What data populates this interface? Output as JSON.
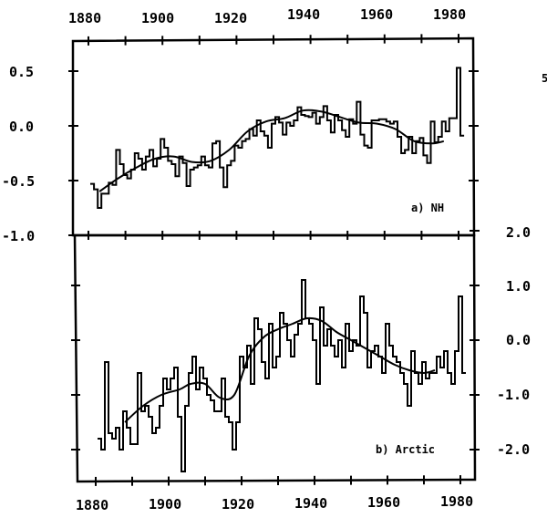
{
  "chart_data": [
    {
      "type": "line",
      "panel": "a",
      "title": "a) NH",
      "xlabel": "",
      "ylabel": "",
      "x_ticks": [
        "1880",
        "1900",
        "1920",
        "1940",
        "1960",
        "1980"
      ],
      "y_ticks": [
        "0.5",
        "0.0",
        "-0.5",
        "-1.0"
      ],
      "xlim": [
        1880,
        1983
      ],
      "ylim": [
        -1.0,
        0.6
      ],
      "grid": false,
      "series": [
        {
          "name": "annual (step)",
          "style": "step",
          "x": [
            1881,
            1882,
            1883,
            1884,
            1885,
            1886,
            1887,
            1888,
            1889,
            1890,
            1891,
            1892,
            1893,
            1894,
            1895,
            1896,
            1897,
            1898,
            1899,
            1900,
            1901,
            1902,
            1903,
            1904,
            1905,
            1906,
            1907,
            1908,
            1909,
            1910,
            1911,
            1912,
            1913,
            1914,
            1915,
            1916,
            1917,
            1918,
            1919,
            1920,
            1921,
            1922,
            1923,
            1924,
            1925,
            1926,
            1927,
            1928,
            1929,
            1930,
            1931,
            1932,
            1933,
            1934,
            1935,
            1936,
            1937,
            1938,
            1939,
            1940,
            1941,
            1942,
            1943,
            1944,
            1945,
            1946,
            1947,
            1948,
            1949,
            1950,
            1951,
            1952,
            1953,
            1954,
            1955,
            1956,
            1957,
            1958,
            1959,
            1960,
            1961,
            1962,
            1963,
            1964,
            1965,
            1966,
            1967,
            1968,
            1969,
            1970,
            1971,
            1972,
            1973,
            1974,
            1975,
            1976,
            1977,
            1978,
            1979,
            1980,
            1981
          ],
          "values": [
            -0.53,
            -0.58,
            -0.75,
            -0.62,
            -0.62,
            -0.52,
            -0.54,
            -0.22,
            -0.35,
            -0.45,
            -0.48,
            -0.4,
            -0.25,
            -0.3,
            -0.4,
            -0.28,
            -0.22,
            -0.37,
            -0.3,
            -0.12,
            -0.2,
            -0.32,
            -0.35,
            -0.46,
            -0.28,
            -0.34,
            -0.55,
            -0.4,
            -0.38,
            -0.36,
            -0.28,
            -0.36,
            -0.38,
            -0.16,
            -0.14,
            -0.38,
            -0.56,
            -0.36,
            -0.32,
            -0.18,
            -0.2,
            -0.14,
            -0.12,
            -0.03,
            -0.09,
            0.05,
            -0.05,
            -0.09,
            -0.2,
            0.02,
            0.08,
            0.03,
            -0.08,
            0.03,
            0.0,
            0.05,
            0.17,
            0.1,
            0.09,
            0.08,
            0.12,
            0.02,
            0.08,
            0.18,
            0.05,
            -0.06,
            0.1,
            0.05,
            -0.04,
            -0.1,
            0.06,
            0.02,
            0.22,
            -0.08,
            -0.18,
            -0.2,
            0.05,
            0.05,
            0.06,
            0.06,
            0.04,
            0.02,
            0.04,
            -0.1,
            -0.25,
            -0.22,
            -0.1,
            -0.25,
            -0.14,
            -0.11,
            -0.27,
            -0.34,
            0.04,
            -0.15,
            -0.1,
            0.04,
            -0.05,
            0.07,
            0.07,
            0.53,
            -0.09
          ],
          "color": "#000000"
        },
        {
          "name": "smoothed",
          "style": "smooth",
          "x": [
            1883,
            1888,
            1893,
            1898,
            1903,
            1908,
            1913,
            1918,
            1923,
            1928,
            1933,
            1938,
            1943,
            1948,
            1953,
            1958,
            1963,
            1968,
            1973,
            1976
          ],
          "values": [
            -0.6,
            -0.48,
            -0.38,
            -0.3,
            -0.28,
            -0.33,
            -0.32,
            -0.22,
            -0.05,
            0.04,
            0.07,
            0.14,
            0.13,
            0.08,
            0.03,
            0.02,
            -0.03,
            -0.14,
            -0.16,
            -0.14
          ],
          "color": "#000000"
        }
      ]
    },
    {
      "type": "line",
      "panel": "b",
      "title": "b) Arctic",
      "xlabel": "",
      "ylabel": "",
      "x_ticks": [
        "1880",
        "1900",
        "1920",
        "1940",
        "1960",
        "1980"
      ],
      "y_ticks": [
        "2.0",
        "1.0",
        "0.0",
        "-1.0",
        "-2.0"
      ],
      "xlim": [
        1880,
        1983
      ],
      "ylim": [
        -2.5,
        2.0
      ],
      "grid": false,
      "series": [
        {
          "name": "annual (step)",
          "style": "step",
          "x": [
            1881,
            1882,
            1883,
            1884,
            1885,
            1886,
            1887,
            1888,
            1889,
            1890,
            1891,
            1892,
            1893,
            1894,
            1895,
            1896,
            1897,
            1898,
            1899,
            1900,
            1901,
            1902,
            1903,
            1904,
            1905,
            1906,
            1907,
            1908,
            1909,
            1910,
            1911,
            1912,
            1913,
            1914,
            1915,
            1916,
            1917,
            1918,
            1919,
            1920,
            1921,
            1922,
            1923,
            1924,
            1925,
            1926,
            1927,
            1928,
            1929,
            1930,
            1931,
            1932,
            1933,
            1934,
            1935,
            1936,
            1937,
            1938,
            1939,
            1940,
            1941,
            1942,
            1943,
            1944,
            1945,
            1946,
            1947,
            1948,
            1949,
            1950,
            1951,
            1952,
            1953,
            1954,
            1955,
            1956,
            1957,
            1958,
            1959,
            1960,
            1961,
            1962,
            1963,
            1964,
            1965,
            1966,
            1967,
            1968,
            1969,
            1970,
            1971,
            1972,
            1973,
            1974,
            1975,
            1976,
            1977,
            1978,
            1979,
            1980,
            1981
          ],
          "values": [
            -1.8,
            -2.0,
            -0.4,
            -1.7,
            -1.8,
            -1.6,
            -2.0,
            -1.3,
            -1.6,
            -1.9,
            -1.9,
            -0.6,
            -1.3,
            -1.2,
            -1.4,
            -1.7,
            -1.6,
            -1.2,
            -0.7,
            -0.9,
            -0.7,
            -0.5,
            -1.4,
            -2.4,
            -1.2,
            -0.6,
            -0.3,
            -0.9,
            -0.5,
            -0.7,
            -1.0,
            -1.1,
            -1.3,
            -1.3,
            -0.7,
            -1.4,
            -1.5,
            -2.0,
            -1.5,
            -0.3,
            -0.5,
            -0.1,
            -0.8,
            0.4,
            0.2,
            -0.4,
            -0.7,
            0.3,
            -0.5,
            -0.3,
            0.5,
            0.3,
            0.0,
            -0.3,
            0.1,
            0.3,
            1.1,
            0.4,
            0.3,
            0.0,
            -0.8,
            0.6,
            -0.1,
            0.2,
            -0.1,
            -0.3,
            0.0,
            -0.5,
            0.3,
            -0.2,
            0.0,
            -0.1,
            0.8,
            0.5,
            -0.5,
            -0.2,
            -0.1,
            -0.3,
            -0.6,
            0.3,
            -0.1,
            -0.3,
            -0.4,
            -0.6,
            -0.8,
            -1.2,
            -0.2,
            -0.6,
            -0.8,
            -0.4,
            -0.7,
            -0.6,
            -0.6,
            -0.3,
            -0.5,
            -0.2,
            -0.6,
            -0.8,
            -0.2,
            0.8,
            -0.6
          ],
          "color": "#000000"
        },
        {
          "name": "smoothed",
          "style": "smooth",
          "x": [
            1888,
            1893,
            1898,
            1903,
            1906,
            1910,
            1914,
            1918,
            1922,
            1926,
            1930,
            1934,
            1938,
            1942,
            1946,
            1950,
            1954,
            1958,
            1962,
            1966,
            1970,
            1973
          ],
          "values": [
            -1.5,
            -1.2,
            -1.0,
            -0.9,
            -0.8,
            -0.8,
            -1.05,
            -1.0,
            -0.3,
            0.05,
            0.2,
            0.3,
            0.4,
            0.35,
            0.15,
            0.0,
            -0.15,
            -0.3,
            -0.45,
            -0.55,
            -0.6,
            -0.55
          ],
          "color": "#000000"
        }
      ]
    }
  ],
  "axes": {
    "top_x_labels": [
      "1880",
      "1900",
      "1920",
      "1940",
      "1960",
      "1980"
    ],
    "bottom_x_labels": [
      "1880",
      "1900",
      "1920",
      "1940",
      "1960",
      "1980"
    ],
    "left_y_labels": [
      "0.5",
      "0.0",
      "-0.5",
      "-1.0"
    ],
    "right_y_labels": [
      "2.0",
      "1.0",
      "0.0",
      "-1.0",
      "-2.0"
    ],
    "panel_a_label": "a) NH",
    "panel_b_label": "b) Arctic"
  },
  "style": {
    "line_color": "#000000",
    "background": "#ffffff"
  }
}
